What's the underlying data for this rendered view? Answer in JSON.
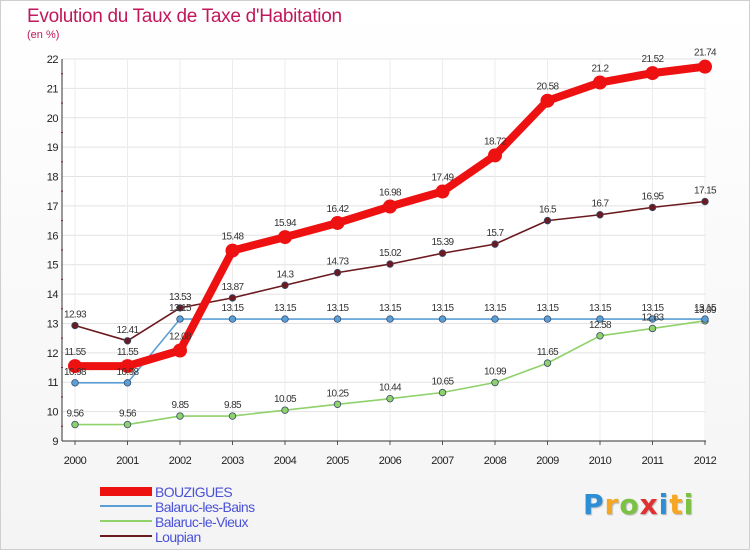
{
  "title": "Evolution du Taux de Taxe d'Habitation",
  "subtitle": "(en %)",
  "brand": {
    "letters": [
      "P",
      "r",
      "o",
      "x",
      "i",
      "t",
      "i"
    ],
    "colors": [
      "#2c8fd6",
      "#f5a623",
      "#7cc242",
      "#e03131",
      "#2c8fd6",
      "#f5a623",
      "#7cc242"
    ]
  },
  "chart_data": {
    "type": "line",
    "title": "Evolution du Taux de Taxe d'Habitation",
    "ylabel": "(en %)",
    "xlabel": "",
    "ylim": [
      9,
      22
    ],
    "yticks": [
      9,
      10,
      11,
      12,
      13,
      14,
      15,
      16,
      17,
      18,
      19,
      20,
      21,
      22
    ],
    "categories": [
      "2000",
      "2001",
      "2002",
      "2003",
      "2004",
      "2005",
      "2006",
      "2007",
      "2008",
      "2009",
      "2010",
      "2011",
      "2012"
    ],
    "series": [
      {
        "name": "Loupian",
        "color": "#6b1a1f",
        "values": [
          12.93,
          12.41,
          13.53,
          13.87,
          14.3,
          14.73,
          15.02,
          15.39,
          15.7,
          16.5,
          16.7,
          16.95,
          17.15
        ],
        "labels": [
          "12.93",
          "12.41",
          "13.53",
          "13.87",
          "14.3",
          "14.73",
          "15.02",
          "15.39",
          "15.7",
          "16.5",
          "16.7",
          "16.95",
          "17.15"
        ]
      },
      {
        "name": "Balaruc-le-Vieux",
        "color": "#8fd16a",
        "values": [
          9.56,
          9.56,
          9.85,
          9.85,
          10.05,
          10.25,
          10.44,
          10.65,
          10.99,
          11.65,
          12.58,
          12.83,
          13.09
        ],
        "labels": [
          "9.56",
          "9.56",
          "9.85",
          "9.85",
          "10.05",
          "10.25",
          "10.44",
          "10.65",
          "10.99",
          "11.65",
          "12.58",
          "12.83",
          "13.09"
        ]
      },
      {
        "name": "Balaruc-les-Bains",
        "color": "#5a9fd6",
        "values": [
          10.98,
          10.98,
          13.15,
          13.15,
          13.15,
          13.15,
          13.15,
          13.15,
          13.15,
          13.15,
          13.15,
          13.15,
          13.15
        ],
        "labels": [
          "10.98",
          "10.98",
          "13.15",
          "13.15",
          "13.15",
          "13.15",
          "13.15",
          "13.15",
          "13.15",
          "13.15",
          "13.15",
          "13.15",
          "13.15"
        ]
      },
      {
        "name": "BOUZIGUES",
        "color": "#ee1111",
        "values": [
          11.55,
          11.55,
          12.08,
          15.48,
          15.94,
          16.42,
          16.98,
          17.49,
          18.72,
          20.58,
          21.2,
          21.52,
          21.74
        ],
        "labels": [
          "11.55",
          "11.55",
          "12.08",
          "15.48",
          "15.94",
          "16.42",
          "16.98",
          "17.49",
          "18.72",
          "20.58",
          "21.2",
          "21.52",
          "21.74"
        ]
      }
    ],
    "legend": [
      {
        "name": "BOUZIGUES",
        "color": "#ee1111"
      },
      {
        "name": "Balaruc-les-Bains",
        "color": "#5a9fd6"
      },
      {
        "name": "Balaruc-le-Vieux",
        "color": "#8fd16a"
      },
      {
        "name": "Loupian",
        "color": "#6b1a1f"
      }
    ]
  }
}
